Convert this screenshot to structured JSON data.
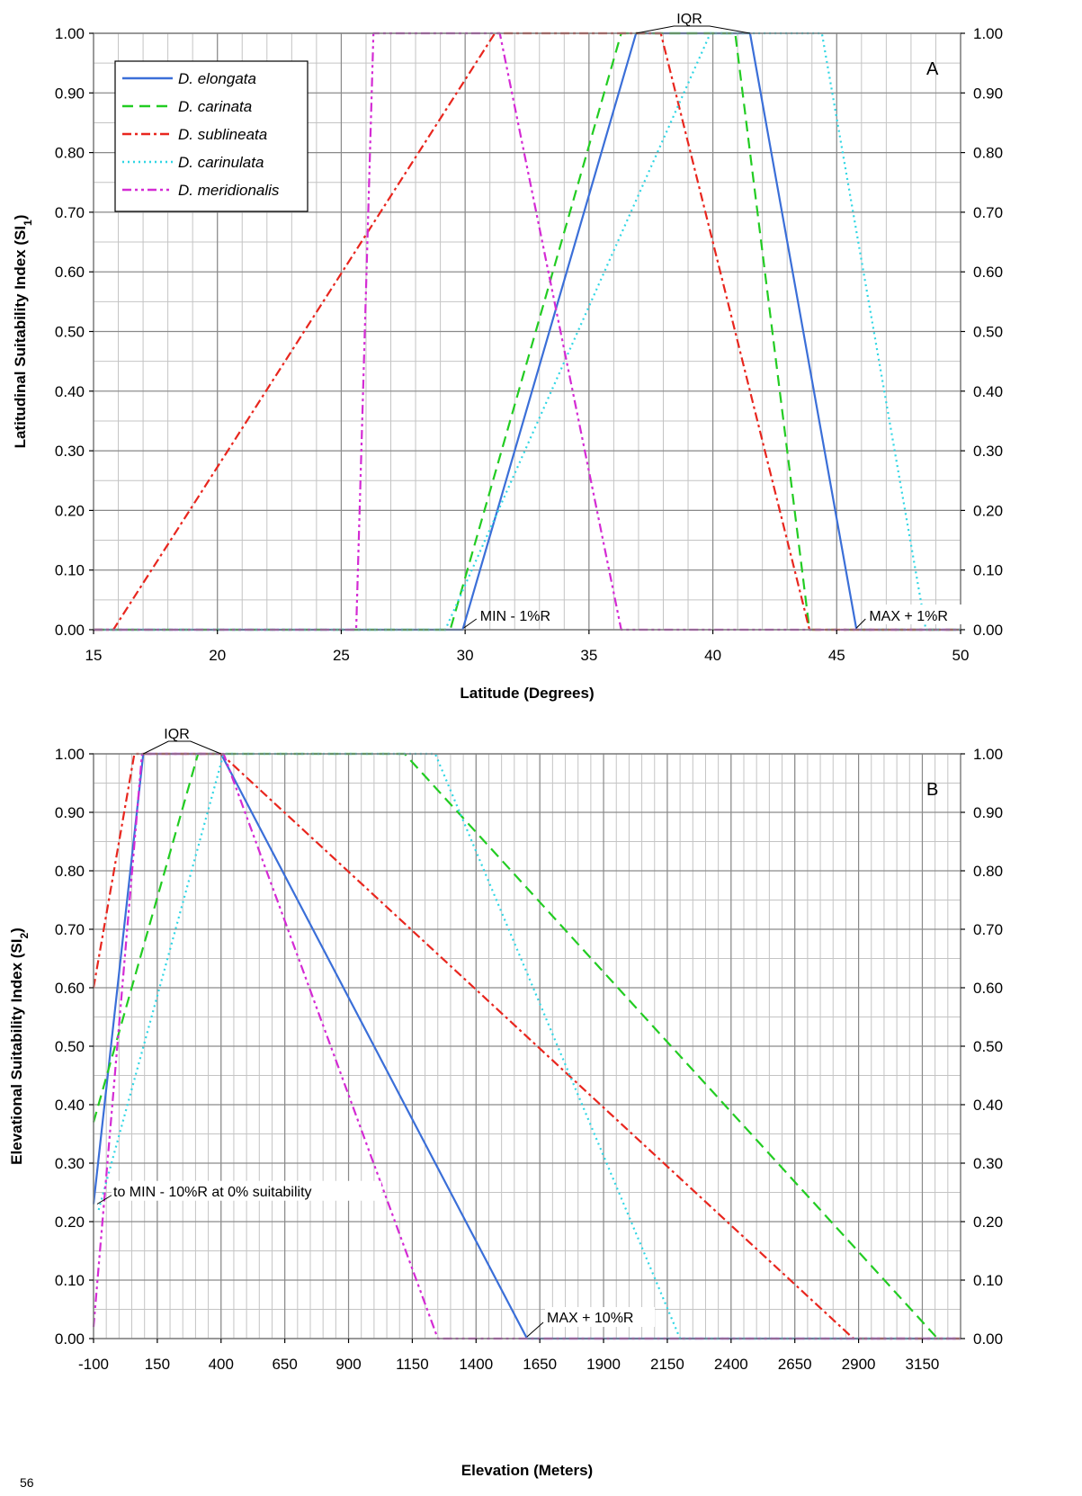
{
  "page_number": "56",
  "legend": {
    "items": [
      {
        "label": "D. elongata",
        "color": "#3b6fd8",
        "dash": "solid"
      },
      {
        "label": "D. carinata",
        "color": "#22cc22",
        "dash": "12 7"
      },
      {
        "label": "D. sublineata",
        "color": "#e8261e",
        "dash": "10 4 3 4"
      },
      {
        "label": "D. carinulata",
        "color": "#2fd6e4",
        "dash": "2 4"
      },
      {
        "label": "D. meridionalis",
        "color": "#d42bd4",
        "dash": "10 4 3 4 3 4"
      }
    ]
  },
  "chart_data": [
    {
      "type": "line",
      "panel_label": "A",
      "xlabel": "Latitude (Degrees)",
      "ylabel": "Latitudinal Suitability Index (SI",
      "ylabel_sub": "1",
      "ylabel_close": ")",
      "xlim": [
        15,
        50
      ],
      "ylim": [
        0,
        1
      ],
      "xticks": [
        "15",
        "20",
        "25",
        "30",
        "35",
        "40",
        "45",
        "50"
      ],
      "yticks": [
        "0.00",
        "0.10",
        "0.20",
        "0.30",
        "0.40",
        "0.50",
        "0.60",
        "0.70",
        "0.80",
        "0.90",
        "1.00"
      ],
      "grid": true,
      "legend_position": "top-left",
      "annotations": [
        "IQR",
        "MIN - 1%R",
        "MAX + 1%R"
      ],
      "series": [
        {
          "name": "D. elongata",
          "x": [
            15,
            29.9,
            36.9,
            41.5,
            45.8,
            50
          ],
          "y": [
            0,
            0,
            1,
            1,
            0,
            0
          ]
        },
        {
          "name": "D. carinata",
          "x": [
            15,
            29.4,
            36.3,
            40.9,
            43.9,
            50
          ],
          "y": [
            0,
            0,
            1,
            1,
            0,
            0
          ]
        },
        {
          "name": "D. sublineata",
          "x": [
            15,
            15.8,
            31.2,
            37.9,
            43.9,
            50
          ],
          "y": [
            0,
            0,
            1,
            1,
            0,
            0
          ]
        },
        {
          "name": "D. carinulata",
          "x": [
            15,
            29.2,
            39.9,
            44.4,
            48.6,
            50
          ],
          "y": [
            0,
            0,
            1,
            1,
            0,
            0
          ]
        },
        {
          "name": "D. meridionalis",
          "x": [
            15,
            25.6,
            26.3,
            31.4,
            36.3,
            50
          ],
          "y": [
            0,
            0,
            1,
            1,
            0,
            0
          ]
        }
      ]
    },
    {
      "type": "line",
      "panel_label": "B",
      "xlabel": "Elevation (Meters)",
      "ylabel": "Elevational Suitability Index (SI",
      "ylabel_sub": "2",
      "ylabel_close": ")",
      "xlim": [
        -100,
        3300
      ],
      "ylim": [
        0,
        1
      ],
      "xticks": [
        "-100",
        "150",
        "400",
        "650",
        "900",
        "1150",
        "1400",
        "1650",
        "1900",
        "2150",
        "2400",
        "2650",
        "2900",
        "3150"
      ],
      "yticks": [
        "0.00",
        "0.10",
        "0.20",
        "0.30",
        "0.40",
        "0.50",
        "0.60",
        "0.70",
        "0.80",
        "0.90",
        "1.00"
      ],
      "grid": true,
      "annotations": [
        "IQR",
        "to MIN - 10%R at 0% suitability",
        "MAX + 10%R"
      ],
      "series": [
        {
          "name": "D. elongata",
          "x": [
            -100,
            95,
            400,
            1600,
            3300
          ],
          "y": [
            0.23,
            1,
            1,
            0,
            0
          ]
        },
        {
          "name": "D. carinata",
          "x": [
            -100,
            310,
            1120,
            3210
          ],
          "y": [
            0.37,
            1,
            1,
            0
          ]
        },
        {
          "name": "D. sublineata",
          "x": [
            -100,
            60,
            400,
            2880,
            3300
          ],
          "y": [
            0.6,
            1,
            1,
            0,
            0
          ]
        },
        {
          "name": "D. carinulata",
          "x": [
            -80,
            410,
            1240,
            2200,
            3300
          ],
          "y": [
            0.22,
            1,
            1,
            0,
            0
          ]
        },
        {
          "name": "D. meridionalis",
          "x": [
            -100,
            90,
            410,
            1250,
            3300
          ],
          "y": [
            0.02,
            1,
            1,
            0,
            0
          ]
        }
      ]
    }
  ]
}
